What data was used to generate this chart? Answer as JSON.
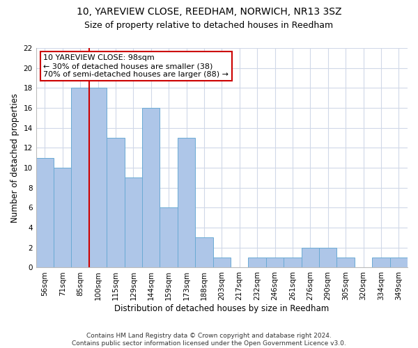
{
  "title1": "10, YAREVIEW CLOSE, REEDHAM, NORWICH, NR13 3SZ",
  "title2": "Size of property relative to detached houses in Reedham",
  "xlabel": "Distribution of detached houses by size in Reedham",
  "ylabel": "Number of detached properties",
  "categories": [
    "56sqm",
    "71sqm",
    "85sqm",
    "100sqm",
    "115sqm",
    "129sqm",
    "144sqm",
    "159sqm",
    "173sqm",
    "188sqm",
    "203sqm",
    "217sqm",
    "232sqm",
    "246sqm",
    "261sqm",
    "276sqm",
    "290sqm",
    "305sqm",
    "320sqm",
    "334sqm",
    "349sqm"
  ],
  "values": [
    11,
    10,
    18,
    18,
    13,
    9,
    16,
    6,
    13,
    3,
    1,
    0,
    1,
    1,
    1,
    2,
    2,
    1,
    0,
    1,
    1
  ],
  "bar_color": "#aec6e8",
  "bar_edge_color": "#6aaad4",
  "vline_x_index": 3,
  "vline_color": "#cc0000",
  "annotation_line1": "10 YAREVIEW CLOSE: 98sqm",
  "annotation_line2": "← 30% of detached houses are smaller (38)",
  "annotation_line3": "70% of semi-detached houses are larger (88) →",
  "annotation_box_color": "#ffffff",
  "annotation_box_edge": "#cc0000",
  "ylim": [
    0,
    22
  ],
  "yticks": [
    0,
    2,
    4,
    6,
    8,
    10,
    12,
    14,
    16,
    18,
    20,
    22
  ],
  "footer": "Contains HM Land Registry data © Crown copyright and database right 2024.\nContains public sector information licensed under the Open Government Licence v3.0.",
  "bg_color": "#ffffff",
  "grid_color": "#d0d8e8",
  "title1_fontsize": 10,
  "title2_fontsize": 9,
  "axis_label_fontsize": 8.5,
  "tick_fontsize": 7.5,
  "annotation_fontsize": 8,
  "footer_fontsize": 6.5
}
